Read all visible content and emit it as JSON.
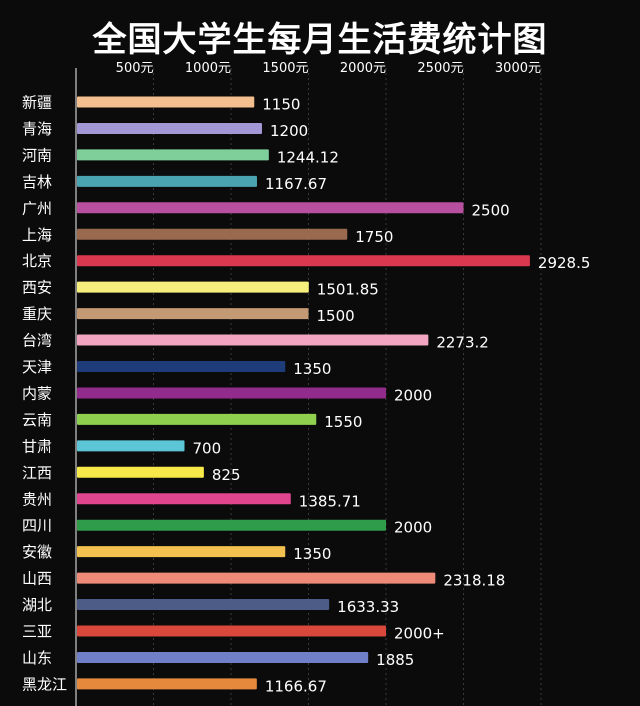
{
  "chart_data": {
    "type": "bar",
    "orientation": "horizontal",
    "title": "全国大学生每月生活费统计图",
    "xlabel": "",
    "ylabel": "",
    "xlim": [
      0,
      3300
    ],
    "grid": true,
    "x_ticks": [
      {
        "value": 500,
        "label": "500元"
      },
      {
        "value": 1000,
        "label": "1000元"
      },
      {
        "value": 1500,
        "label": "1500元"
      },
      {
        "value": 2000,
        "label": "2000元"
      },
      {
        "value": 2500,
        "label": "2500元"
      },
      {
        "value": 3000,
        "label": "3000元"
      }
    ],
    "bars": [
      {
        "category": "新疆",
        "value": 1150,
        "label": "1150",
        "color": "#f3bf8f"
      },
      {
        "category": "青海",
        "value": 1200,
        "label": "1200",
        "color": "#a497d6"
      },
      {
        "category": "河南",
        "value": 1244.12,
        "label": "1244.12",
        "color": "#7fcf9b"
      },
      {
        "category": "吉林",
        "value": 1167.67,
        "label": "1167.67",
        "color": "#4aa3b1"
      },
      {
        "category": "广州",
        "value": 2500,
        "label": "2500",
        "color": "#b8509f"
      },
      {
        "category": "上海",
        "value": 1750,
        "label": "1750",
        "color": "#9a6a4f"
      },
      {
        "category": "北京",
        "value": 2928.5,
        "label": "2928.5",
        "color": "#d9384f"
      },
      {
        "category": "西安",
        "value": 1501.85,
        "label": "1501.85",
        "color": "#f6ee7d"
      },
      {
        "category": "重庆",
        "value": 1500,
        "label": "1500",
        "color": "#c49a74"
      },
      {
        "category": "台湾",
        "value": 2273.2,
        "label": "2273.2",
        "color": "#f2a4c0"
      },
      {
        "category": "天津",
        "value": 1350,
        "label": "1350",
        "color": "#1f3c7a"
      },
      {
        "category": "内蒙",
        "value": 2000,
        "label": "2000",
        "color": "#922c8c"
      },
      {
        "category": "云南",
        "value": 1550,
        "label": "1550",
        "color": "#8fd14f"
      },
      {
        "category": "甘肃",
        "value": 700,
        "label": "700",
        "color": "#5cc5d6"
      },
      {
        "category": "江西",
        "value": 825,
        "label": "825",
        "color": "#f7e94a"
      },
      {
        "category": "贵州",
        "value": 1385.71,
        "label": "1385.71",
        "color": "#e0458d"
      },
      {
        "category": "四川",
        "value": 2000,
        "label": "2000",
        "color": "#2f9c4b"
      },
      {
        "category": "安徽",
        "value": 1350,
        "label": "1350",
        "color": "#f2c14f"
      },
      {
        "category": "山西",
        "value": 2318.18,
        "label": "2318.18",
        "color": "#ee8a78"
      },
      {
        "category": "湖北",
        "value": 1633.33,
        "label": "1633.33",
        "color": "#4d5c86"
      },
      {
        "category": "三亚",
        "value": 2000,
        "label": "2000+",
        "color": "#d9483a"
      },
      {
        "category": "山东",
        "value": 1885,
        "label": "1885",
        "color": "#6f80c9"
      },
      {
        "category": "黑龙江",
        "value": 1166.67,
        "label": "1166.67",
        "color": "#e58a3c"
      }
    ]
  }
}
